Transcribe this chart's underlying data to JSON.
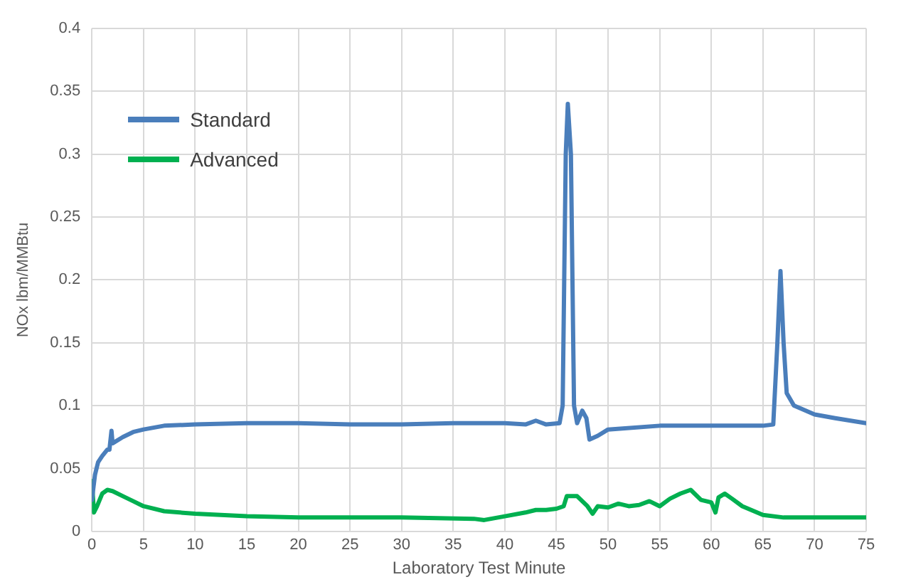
{
  "chart_data": {
    "type": "line",
    "xlabel": "Laboratory Test Minute",
    "ylabel": "NOx lbm/MMBtu",
    "xlim": [
      0,
      75
    ],
    "xticks": [
      0,
      5,
      10,
      15,
      20,
      25,
      30,
      35,
      40,
      45,
      50,
      55,
      60,
      65,
      70,
      75
    ],
    "ylim": [
      0,
      0.4
    ],
    "yticks": [
      0,
      0.05,
      0.1,
      0.15,
      0.2,
      0.25,
      0.3,
      0.35,
      0.4
    ],
    "grid": true,
    "legend": "top left",
    "marker": "none",
    "line_style": "solid",
    "series": [
      {
        "name": "Standard",
        "color": "#4a7ebb",
        "x": [
          0,
          0.3,
          0.6,
          1,
          1.5,
          1.7,
          1.9,
          2,
          3,
          4,
          5,
          7,
          10,
          15,
          20,
          25,
          30,
          35,
          40,
          42,
          43,
          44,
          45.3,
          45.6,
          45.9,
          46.1,
          46.4,
          46.7,
          47,
          47.5,
          47.9,
          48.2,
          49,
          50,
          55,
          60,
          65,
          66,
          66.4,
          66.7,
          67,
          67.3,
          68,
          70,
          72,
          75
        ],
        "values": [
          0.025,
          0.045,
          0.055,
          0.06,
          0.065,
          0.065,
          0.08,
          0.07,
          0.075,
          0.079,
          0.081,
          0.084,
          0.085,
          0.086,
          0.086,
          0.085,
          0.085,
          0.086,
          0.086,
          0.085,
          0.088,
          0.085,
          0.086,
          0.1,
          0.3,
          0.34,
          0.3,
          0.1,
          0.086,
          0.096,
          0.09,
          0.073,
          0.076,
          0.081,
          0.084,
          0.084,
          0.084,
          0.085,
          0.15,
          0.207,
          0.15,
          0.11,
          0.1,
          0.093,
          0.09,
          0.086
        ]
      },
      {
        "name": "Advanced",
        "color": "#00b050",
        "x": [
          0,
          0.2,
          0.5,
          1,
          1.5,
          2,
          3,
          4,
          5,
          7,
          10,
          15,
          20,
          30,
          37,
          38,
          40,
          42,
          43,
          44,
          45,
          45.7,
          46,
          47,
          48,
          48.5,
          49,
          50,
          51,
          52,
          53,
          54,
          55,
          56,
          57,
          58,
          59,
          60,
          60.4,
          60.7,
          61.3,
          62,
          63,
          65,
          67,
          75
        ],
        "values": [
          0.04,
          0.015,
          0.02,
          0.03,
          0.033,
          0.032,
          0.028,
          0.024,
          0.02,
          0.016,
          0.014,
          0.012,
          0.011,
          0.011,
          0.01,
          0.009,
          0.012,
          0.015,
          0.017,
          0.017,
          0.018,
          0.02,
          0.028,
          0.028,
          0.02,
          0.014,
          0.02,
          0.019,
          0.022,
          0.02,
          0.021,
          0.024,
          0.02,
          0.026,
          0.03,
          0.033,
          0.025,
          0.023,
          0.015,
          0.027,
          0.03,
          0.026,
          0.02,
          0.013,
          0.011,
          0.011
        ]
      }
    ]
  }
}
